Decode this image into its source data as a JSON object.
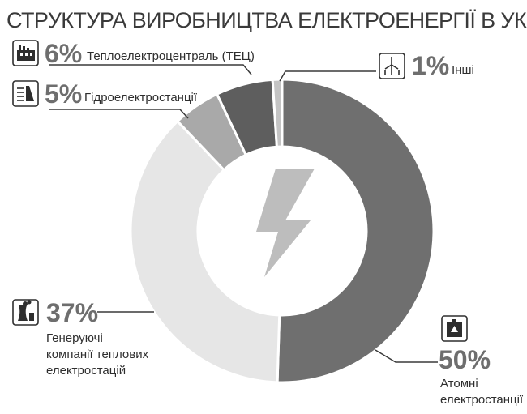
{
  "chart_data": {
    "type": "pie",
    "title": "СТРУКТУРА ВИРОБНИЦТВА ЕЛЕКТРОЕНЕРГІЇ В УКРАЇНІ",
    "slices": [
      {
        "label_lines": [
          "Атомні",
          "електростанції"
        ],
        "value": 50,
        "display": "50%",
        "color": "#6f6f6f"
      },
      {
        "label_lines": [
          "Генеруючі",
          "компанії теплових",
          "електростацій"
        ],
        "value": 37,
        "display": "37%",
        "color": "#e6e6e6"
      },
      {
        "label_lines": [
          "Гідроелектростанції"
        ],
        "value": 5,
        "display": "5%",
        "color": "#a9a9a9"
      },
      {
        "label_lines": [
          "Теплоелектроцентраль (ТЕЦ)"
        ],
        "value": 6,
        "display": "6%",
        "color": "#5e5e5e"
      },
      {
        "label_lines": [
          "Інші"
        ],
        "value": 1,
        "display": "1%",
        "color": "#c4c4c4"
      }
    ],
    "center_icon": "lightning-bolt-icon",
    "legend": "none"
  },
  "icons": {
    "nuclear": "nuclear-plant-icon",
    "thermal": "cooling-tower-icon",
    "hydro": "hydro-dam-icon",
    "chp": "factory-icon",
    "other": "wind-turbine-icon"
  }
}
